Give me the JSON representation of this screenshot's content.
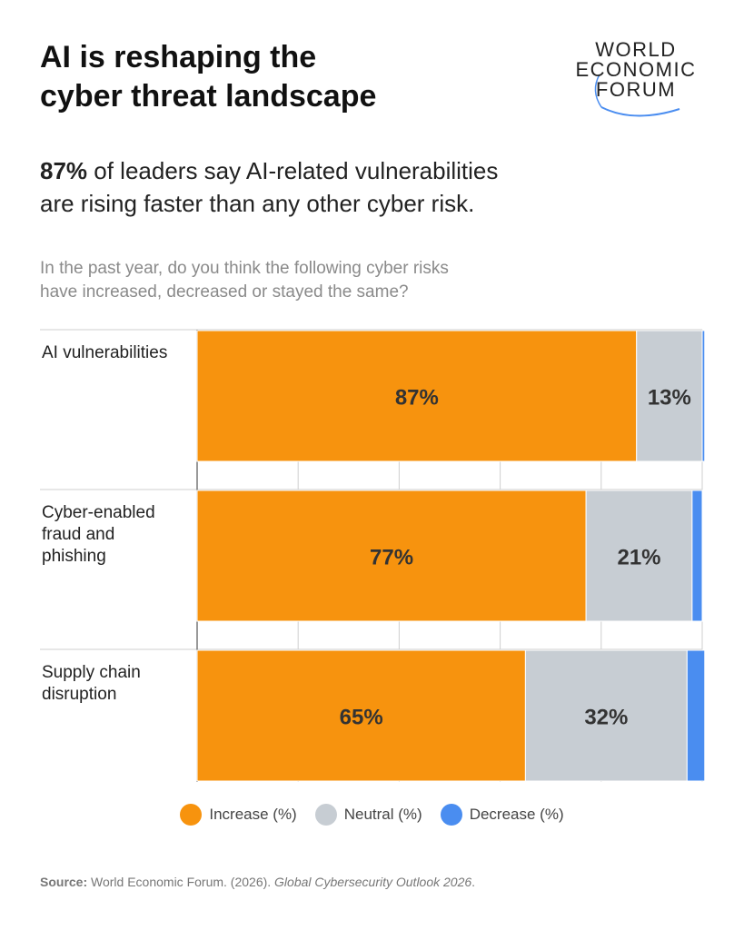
{
  "header": {
    "title_line1": "AI is reshaping the",
    "title_line2": "cyber threat landscape",
    "logo_lines": [
      "WORLD",
      "ECONOMIC",
      "FORUM"
    ]
  },
  "subtitle": {
    "highlight": "87%",
    "text_line1": " of leaders say AI-related vulnerabilities",
    "text_line2": "are rising faster than any other cyber risk."
  },
  "question": {
    "line1": "In the past year, do you think the following cyber risks",
    "line2": "have increased, decreased or stayed the same?"
  },
  "colors": {
    "increase": "#F7930E",
    "neutral": "#C7CDD3",
    "decrease": "#4A8DF0",
    "gridline": "#cfcfcf"
  },
  "chart_data": {
    "type": "bar",
    "orientation": "horizontal",
    "stacked": true,
    "categories": [
      "AI vulnerabilities",
      "Cyber-enabled fraud and phishing",
      "Supply chain disruption"
    ],
    "category_lines": [
      [
        "AI vulnerabilities"
      ],
      [
        "Cyber-enabled",
        "fraud and",
        "phishing"
      ],
      [
        "Supply chain",
        "disruption"
      ]
    ],
    "series": [
      {
        "name": "Increase (%)",
        "values": [
          87,
          77,
          65
        ],
        "labels": [
          "87%",
          "77%",
          "65%"
        ]
      },
      {
        "name": "Neutral (%)",
        "values": [
          13,
          21,
          32
        ],
        "labels": [
          "13%",
          "21%",
          "32%"
        ]
      },
      {
        "name": "Decrease (%)",
        "values": [
          0.5,
          2,
          3.5
        ]
      }
    ],
    "xlim": [
      0,
      100
    ],
    "grid": true,
    "legend_position": "bottom-center"
  },
  "source": {
    "label": "Source:",
    "text": " World Economic Forum. (2026). ",
    "italic": "Global Cybersecurity Outlook 2026",
    "end": "."
  }
}
